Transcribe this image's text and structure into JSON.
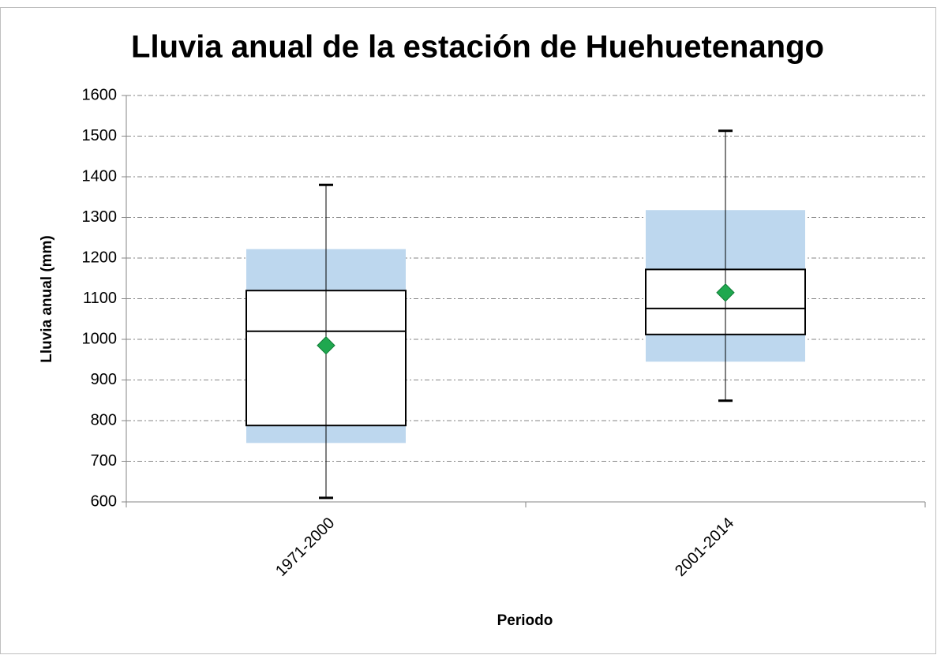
{
  "chart_data": {
    "type": "box",
    "title": "Lluvia anual de la estación de Huehuetenango",
    "x_label": "Periodo",
    "y_label": "Lluvia anual (mm)",
    "categories": [
      "1971-2000",
      "2001-2014"
    ],
    "boxes": [
      {
        "whisker_low": 610,
        "band_low": 745,
        "q1": 788,
        "median": 1020,
        "q3": 1120,
        "band_high": 1222,
        "whisker_high": 1380,
        "mean": 985
      },
      {
        "whisker_low": 849,
        "band_low": 945,
        "q1": 1012,
        "median": 1076,
        "q3": 1172,
        "band_high": 1318,
        "whisker_high": 1513,
        "mean": 1115
      }
    ],
    "band_color": "#bdd7ee",
    "mean_color": "#1fa84f",
    "ylim": [
      600,
      1600
    ],
    "yticks": [
      600,
      700,
      800,
      900,
      1000,
      1100,
      1200,
      1300,
      1400,
      1500,
      1600
    ],
    "grid": true
  }
}
